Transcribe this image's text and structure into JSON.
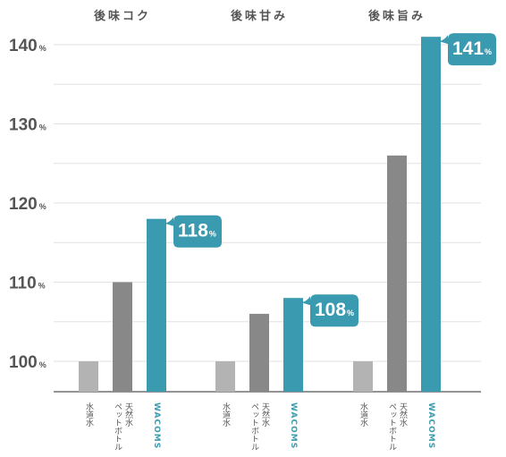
{
  "chart_data": {
    "type": "bar",
    "y_unit": "%",
    "ylim": [
      95,
      143
    ],
    "yticks": [
      100,
      110,
      120,
      130,
      140
    ],
    "grid": true,
    "colors": {
      "水道水": "#b3b3b3",
      "ペットボトル天然水": "#888888",
      "WACOMS": "#3a9aaf"
    },
    "groups": [
      {
        "title": "後味コク",
        "bars": [
          {
            "category": "水道水",
            "value": 100
          },
          {
            "category": "ペットボトル天然水",
            "value": 110
          },
          {
            "category": "WACOMS",
            "value": 118,
            "label": "118"
          }
        ]
      },
      {
        "title": "後味甘み",
        "bars": [
          {
            "category": "水道水",
            "value": 100
          },
          {
            "category": "ペットボトル天然水",
            "value": 106
          },
          {
            "category": "WACOMS",
            "value": 108,
            "label": "108"
          }
        ]
      },
      {
        "title": "後味旨み",
        "bars": [
          {
            "category": "水道水",
            "value": 100
          },
          {
            "category": "ペットボトル天然水",
            "value": 126
          },
          {
            "category": "WACOMS",
            "value": 141,
            "label": "141"
          }
        ]
      }
    ]
  }
}
